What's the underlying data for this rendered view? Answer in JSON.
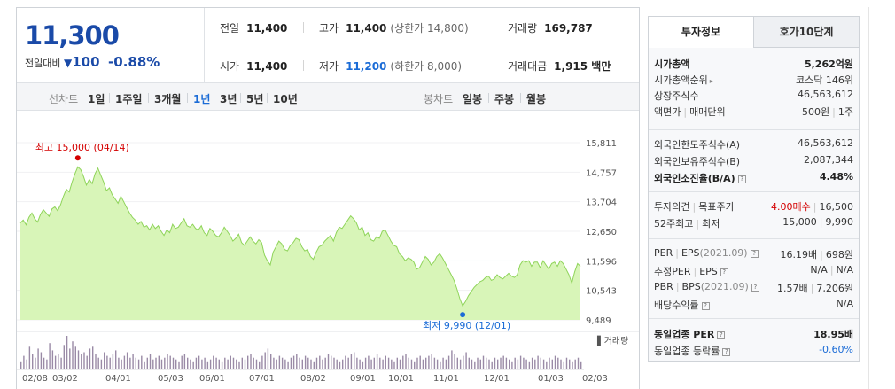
{
  "price": {
    "current": "11,300",
    "change_label": "전일대비",
    "change_arrow": "▼",
    "change": "100",
    "change_pct": "-0.88%"
  },
  "quote": {
    "prev_close_label": "전일",
    "prev_close": "11,400",
    "high_label": "고가",
    "high": "11,400",
    "upper_limit": "(상한가 14,800)",
    "volume_label": "거래량",
    "volume": "169,787",
    "open_label": "시가",
    "open": "11,400",
    "low_label": "저가",
    "low": "11,200",
    "lower_limit": "(하한가 8,000)",
    "amount_label": "거래대금",
    "amount": "1,915 백만"
  },
  "period_tabs": {
    "line_label": "선차트",
    "items": [
      "1일",
      "1주일",
      "3개월",
      "1년",
      "3년",
      "5년",
      "10년"
    ],
    "selected": "1년",
    "candle_label": "봉차트",
    "candle_items": [
      "일봉",
      "주봉",
      "월봉"
    ]
  },
  "chart_data": {
    "type": "area",
    "y_ticks": [
      "15,811",
      "14,757",
      "13,704",
      "12,650",
      "11,596",
      "10,543",
      "9,489"
    ],
    "ylim": [
      9489,
      15811
    ],
    "x_ticks": [
      "02/08",
      "03/02",
      "04/01",
      "05/03",
      "06/01",
      "07/01",
      "08/02",
      "09/01",
      "10/01",
      "11/01",
      "12/01",
      "01/03",
      "02/03"
    ],
    "series": [
      {
        "values": [
          12950,
          13050,
          12880,
          13150,
          13300,
          13100,
          12980,
          13250,
          13420,
          13300,
          13180,
          13450,
          13520,
          13380,
          13600,
          13900,
          14150,
          14050,
          14400,
          14700,
          14950,
          14850,
          14600,
          14300,
          14500,
          14350,
          14700,
          14900,
          14650,
          14400,
          14100,
          14200,
          13950,
          13800,
          13650,
          13900,
          13700,
          13500,
          13300,
          13150,
          13050,
          12900,
          13000,
          12800,
          12850,
          12700,
          12900,
          12750,
          12850,
          12650,
          12500,
          12700,
          12600,
          12900,
          12750,
          12800,
          12950,
          13100,
          12850,
          12800,
          12900,
          12750,
          12700,
          12850,
          12600,
          12500,
          12750,
          12650,
          12500,
          12450,
          12600,
          12800,
          12650,
          12500,
          12300,
          12400,
          12550,
          12250,
          12150,
          12300,
          12450,
          12300,
          12200,
          12350,
          12250,
          11800,
          11600,
          11450,
          11900,
          12100,
          12300,
          12200,
          12000,
          11950,
          12150,
          12250,
          12400,
          12350,
          12100,
          11950,
          12000,
          11750,
          11650,
          11900,
          12100,
          12150,
          12300,
          12400,
          12500,
          12300,
          12600,
          12800,
          12750,
          12900,
          13050,
          13200,
          13100,
          12950,
          12700,
          12800,
          12500,
          12600,
          12350,
          12300,
          12450,
          12400,
          12650,
          12700,
          12500,
          12300,
          12150,
          12100,
          11850,
          11750,
          11600,
          11700,
          11650,
          11550,
          11300,
          11350,
          11550,
          11750,
          11650,
          11450,
          11550,
          11750,
          11850,
          11700,
          11500,
          11300,
          11100,
          10900,
          10600,
          10250,
          9990,
          10150,
          10350,
          10500,
          10650,
          10750,
          10850,
          10900,
          11000,
          11050,
          10900,
          10950,
          11100,
          11000,
          10950,
          11050,
          11150,
          11050,
          11000,
          11100,
          11450,
          11600,
          11550,
          11600,
          11400,
          11550,
          11550,
          11350,
          11600,
          11450,
          11300,
          11500,
          11550,
          11400,
          11600,
          11500,
          11300,
          11100,
          10800,
          11200,
          11500,
          11400
        ]
      }
    ],
    "annotations": {
      "high_text": "최고 15,000 (04/14)",
      "low_text": "최저 9,990 (12/01)"
    },
    "volume_label": "▌거래량",
    "volume_values": [
      20,
      35,
      25,
      60,
      40,
      30,
      55,
      45,
      30,
      25,
      70,
      50,
      35,
      40,
      30,
      65,
      90,
      55,
      75,
      60,
      50,
      40,
      45,
      35,
      55,
      60,
      40,
      30,
      25,
      45,
      35,
      30,
      40,
      50,
      30,
      25,
      35,
      45,
      30,
      40,
      30,
      25,
      35,
      20,
      30,
      40,
      25,
      30,
      35,
      25,
      30,
      40,
      35,
      30,
      25,
      20,
      35,
      40,
      30,
      25,
      20,
      30,
      35,
      25,
      30,
      20,
      25,
      35,
      30,
      25,
      20,
      30,
      25,
      35,
      30,
      25,
      20,
      30,
      25,
      35,
      40,
      30,
      25,
      20,
      35,
      45,
      55,
      40,
      30,
      25,
      35,
      30,
      25,
      20,
      30,
      35,
      40,
      30,
      25,
      35,
      30,
      25,
      20,
      30,
      35,
      25,
      30,
      40,
      35,
      30,
      25,
      20,
      25,
      35,
      30,
      40,
      45,
      30,
      25,
      20,
      30,
      35,
      25,
      30,
      40,
      30,
      25,
      35,
      30,
      25,
      20,
      30,
      25,
      35,
      40,
      30,
      25,
      20,
      30,
      35,
      25,
      30,
      35,
      40,
      30,
      25,
      20,
      30,
      25,
      35,
      50,
      40,
      30,
      25,
      35,
      45,
      30,
      25,
      20,
      30,
      25,
      35,
      30,
      25,
      20,
      30,
      25,
      30,
      35,
      30,
      25,
      20,
      30,
      25,
      35,
      30,
      25,
      20,
      30,
      25,
      35,
      30,
      25,
      20,
      30,
      25,
      35,
      30,
      25,
      20,
      30,
      25,
      20,
      25,
      30,
      20
    ]
  },
  "info_tabs": {
    "active": "투자정보",
    "inactive": "호가10단계"
  },
  "info": {
    "market_cap_label": "시가총액",
    "market_cap": "5,262억원",
    "rank_label": "시가총액순위",
    "rank": "코스닥 146위",
    "shares_label": "상장주식수",
    "shares": "46,563,612",
    "par_label": "액면가",
    "trade_unit_label": "매매단위",
    "par": "500원",
    "trade_unit": "1주",
    "foreign_limit_label": "외국인한도주식수(A)",
    "foreign_limit": "46,563,612",
    "foreign_hold_label": "외국인보유주식수(B)",
    "foreign_hold": "2,087,344",
    "foreign_ratio_label": "외국인소진율(B/A)",
    "foreign_ratio": "4.48%",
    "opinion_label": "투자의견",
    "target_label": "목표주가",
    "opinion": "4.00매수",
    "target": "16,500",
    "w52_high_label": "52주최고",
    "w52_low_label": "최저",
    "w52_high": "15,000",
    "w52_low": "9,990",
    "per_label": "PER",
    "eps_label": "EPS",
    "eps_period": "(2021.09)",
    "per": "16.19배",
    "eps": "698원",
    "est_per_label": "추정PER",
    "est_eps_label": "EPS",
    "est_per": "N/A",
    "est_eps": "N/A",
    "pbr_label": "PBR",
    "bps_label": "BPS",
    "bps_period": "(2021.09)",
    "pbr": "1.57배",
    "bps": "7,206원",
    "div_label": "배당수익률",
    "div": "N/A",
    "ind_per_label": "동일업종 PER",
    "ind_per": "18.95배",
    "ind_rate_label": "동일업종 등락률",
    "ind_rate": "-0.60%"
  },
  "colors": {
    "price_blue": "#1a4aa8",
    "link_blue": "#1a6bd6",
    "area_fill": "#d8f5b8",
    "area_line": "#8fd45a",
    "high_red": "#d40000",
    "low_blue": "#1a6bd6"
  }
}
